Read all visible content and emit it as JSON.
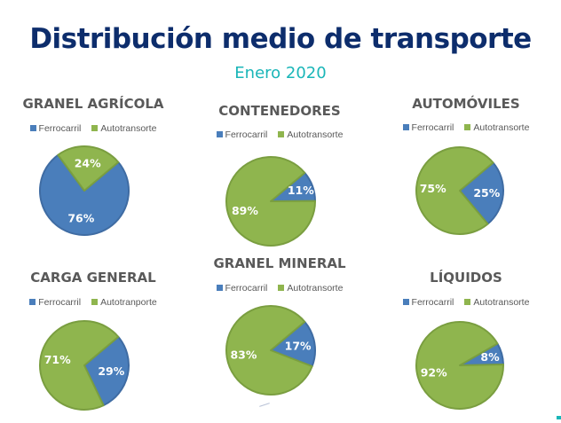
{
  "header": {
    "title": "Distribución medio de transporte",
    "subtitle": "Enero 2020"
  },
  "colors": {
    "ferrocarril": "#4a7ebb",
    "autotransporte": "#8fb54e",
    "ferrocarril_edge": "#3f6ca3",
    "autotransporte_edge": "#7a9e40",
    "title": "#0d2d6c",
    "subtitle": "#1ab6b8"
  },
  "chart_data": [
    {
      "type": "pie",
      "title": "GRANEL AGRÍCOLA",
      "legend": [
        "Ferrocarril",
        "Autotransorte"
      ],
      "categories": [
        "Ferrocarril",
        "Autotransporte"
      ],
      "values": [
        76,
        24
      ],
      "labels": [
        "76%",
        "24%"
      ],
      "legend_position": "top"
    },
    {
      "type": "pie",
      "title": "CONTENEDORES",
      "legend": [
        "Ferrocarril",
        "Autotransorte"
      ],
      "categories": [
        "Ferrocarril",
        "Autotransporte"
      ],
      "values": [
        11,
        89
      ],
      "labels": [
        "11%",
        "89%"
      ],
      "legend_position": "top"
    },
    {
      "type": "pie",
      "title": "AUTOMÓVILES",
      "legend": [
        "Ferrocarril",
        "Autotransorte"
      ],
      "categories": [
        "Ferrocarril",
        "Autotransporte"
      ],
      "values": [
        25,
        75
      ],
      "labels": [
        "25%",
        "75%"
      ],
      "legend_position": "top"
    },
    {
      "type": "pie",
      "title": "CARGA GENERAL",
      "legend": [
        "Ferrocarril",
        "Autotranporte"
      ],
      "categories": [
        "Ferrocarril",
        "Autotransporte"
      ],
      "values": [
        29,
        71
      ],
      "labels": [
        "29%",
        "71%"
      ],
      "legend_position": "top"
    },
    {
      "type": "pie",
      "title": "GRANEL MINERAL",
      "legend": [
        "Ferrocarril",
        "Autotransorte"
      ],
      "categories": [
        "Ferrocarril",
        "Autotransporte"
      ],
      "values": [
        17,
        83
      ],
      "labels": [
        "17%",
        "83%"
      ],
      "legend_position": "top"
    },
    {
      "type": "pie",
      "title": "LÍQUIDOS",
      "legend": [
        "Ferrocarril",
        "Autotransorte"
      ],
      "categories": [
        "Ferrocarril",
        "Autotransporte"
      ],
      "values": [
        8,
        92
      ],
      "labels": [
        "8%",
        "92%"
      ],
      "legend_position": "top"
    }
  ]
}
